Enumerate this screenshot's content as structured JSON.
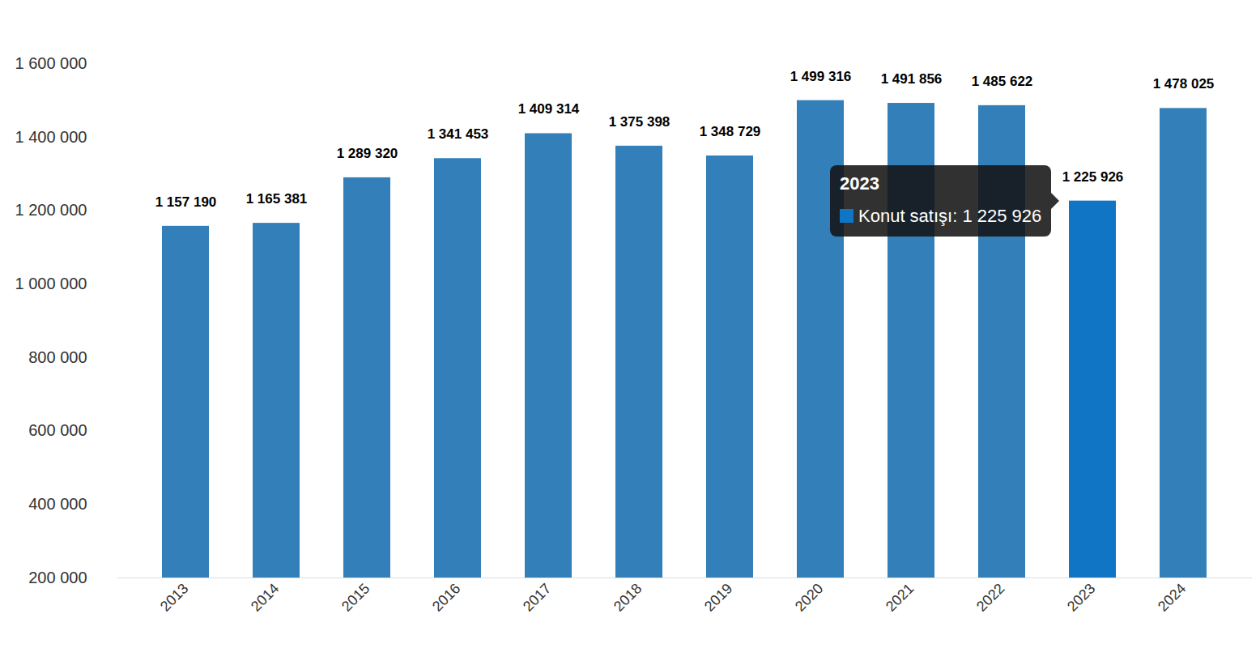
{
  "chart_data": {
    "type": "bar",
    "categories": [
      "2013",
      "2014",
      "2015",
      "2016",
      "2017",
      "2018",
      "2019",
      "2020",
      "2021",
      "2022",
      "2023",
      "2024"
    ],
    "values": [
      1157190,
      1165381,
      1289320,
      1341453,
      1409314,
      1375398,
      1348729,
      1499316,
      1491856,
      1485622,
      1225926,
      1478025
    ],
    "value_labels": [
      "1 157 190",
      "1 165 381",
      "1 289 320",
      "1 341 453",
      "1 409 314",
      "1 375 398",
      "1 348 729",
      "1 499 316",
      "1 491 856",
      "1 485 622",
      "1 225 926",
      "1 478 025"
    ],
    "colors": [
      "#337fb9",
      "#337fb9",
      "#337fb9",
      "#337fb9",
      "#337fb9",
      "#337fb9",
      "#337fb9",
      "#337fb9",
      "#337fb9",
      "#337fb9",
      "#1075c4",
      "#337fb9"
    ],
    "data_labels": true,
    "grid": false,
    "ylim": [
      200000,
      1600000
    ],
    "yticks": [
      {
        "value": 200000,
        "label": "200 000"
      },
      {
        "value": 400000,
        "label": "400 000"
      },
      {
        "value": 600000,
        "label": "600 000"
      },
      {
        "value": 800000,
        "label": "800 000"
      },
      {
        "value": 1000000,
        "label": "1 000 000"
      },
      {
        "value": 1200000,
        "label": "1 200 000"
      },
      {
        "value": 1400000,
        "label": "1 400 000"
      },
      {
        "value": 1600000,
        "label": "1 600 000"
      }
    ],
    "annotations": [
      {
        "category": "2023",
        "text": "Konut satışı: 1 225 926"
      }
    ]
  }
}
